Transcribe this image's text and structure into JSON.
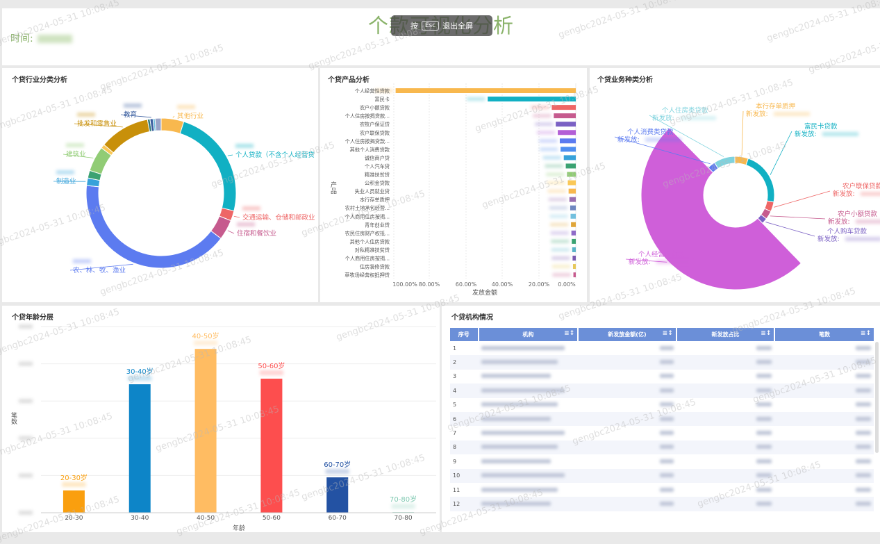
{
  "header": {
    "title": "个款可视化分析",
    "time_label": "时间:",
    "esc_prefix": "按",
    "esc_key": "Esc",
    "esc_suffix": "退出全屏"
  },
  "watermark": "gengbc2024-05-31 10:08:45",
  "panels": {
    "industry": "个贷行业分类分析",
    "product": "个贷产品分析",
    "business": "个贷业务种类分析",
    "age": "个贷年龄分层",
    "institution": "个贷机构情况"
  },
  "chart_data": [
    {
      "type": "pie",
      "variant": "donut",
      "title": "个贷行业分类分析",
      "slices": [
        {
          "label": "其他行业",
          "value": 4.5,
          "color": "#f8b84e"
        },
        {
          "label": "个人贷款（不含个人经营贷",
          "value": 22,
          "color": "#11b0c3"
        },
        {
          "label": "交通运输、仓储和邮政业",
          "value": 2,
          "color": "#ee6666"
        },
        {
          "label": "住宿和餐饮业",
          "value": 4,
          "color": "#c65b8e"
        },
        {
          "label": "农、林、牧、渔业",
          "value": 38,
          "color": "#5c7bf0"
        },
        {
          "label": "制造业",
          "value": 1.5,
          "color": "#37a2da"
        },
        {
          "label": "",
          "value": 1.5,
          "color": "#3ba272"
        },
        {
          "label": "建筑业",
          "value": 5,
          "color": "#91cc75"
        },
        {
          "label": "",
          "value": 0.8,
          "color": "#fac858"
        },
        {
          "label": "批发和零售业",
          "value": 10,
          "color": "#c8900a"
        },
        {
          "label": "",
          "value": 0.5,
          "color": "#30797a"
        },
        {
          "label": "教育",
          "value": 0.6,
          "color": "#3b5fa0"
        },
        {
          "label": "",
          "value": 0.4,
          "color": "#73c0de"
        },
        {
          "label": "",
          "value": 1.2,
          "color": "#9aa4c8"
        }
      ]
    },
    {
      "type": "bar",
      "orientation": "horizontal",
      "title": "个贷产品分析",
      "xlabel": "发放金额",
      "ylabel": "产品",
      "xticks": [
        "100.00%",
        "80.00%",
        "60.00%",
        "40.00%",
        "20.00%",
        "0.00%"
      ],
      "categories": [
        "个人经营性贷款",
        "富民卡",
        "农户小额贷款",
        "个人住房按揭贷款...",
        "农牧户保证贷",
        "农户联保贷款",
        "个人住房按揭贷款...",
        "其他个人消费贷款",
        "诚信商户贷",
        "个人汽车贷",
        "精准扶贫贷",
        "公积金贷款",
        "失业人员就业贷",
        "本行存单质押",
        "农村土地承包经营...",
        "个人商用住房按揭...",
        "青年创业贷",
        "农民住房财产权抵...",
        "其他个人住房贷款",
        "对私精准扶贫贷",
        "个人商用住房按揭...",
        "住房装修贷款",
        "草牧场经营权抵押贷"
      ],
      "values": [
        45,
        22,
        6,
        5.5,
        5,
        4.5,
        4,
        3.8,
        3,
        2.5,
        2.2,
        2,
        1.8,
        1.6,
        1.4,
        1.3,
        1.2,
        1.1,
        1,
        0.9,
        0.8,
        0.7,
        0.6
      ],
      "colors": [
        "#f8b84e",
        "#11b0c3",
        "#ee6666",
        "#c65b8e",
        "#7b61c4",
        "#b35fd6",
        "#5c7bf0",
        "#4f8ef0",
        "#37a2da",
        "#3ba272",
        "#91cc75",
        "#fac858",
        "#f8b84e",
        "#9a6fb0",
        "#6f87c0",
        "#73c0de",
        "#e0a63a",
        "#8f6bc8",
        "#3ba272",
        "#5ab4c8",
        "#7a5ab0",
        "#e6c85a",
        "#c65b8e"
      ]
    },
    {
      "type": "pie",
      "variant": "rose",
      "title": "个贷业务种类分析",
      "slices": [
        {
          "label": "本行存单质押",
          "sublabel": "新发放:",
          "value": 0.4,
          "color": "#f8b84e"
        },
        {
          "label": "富民卡贷款",
          "sublabel": "新发放:",
          "value": 10,
          "color": "#11b0c3"
        },
        {
          "label": "农户联保贷款",
          "sublabel": "新发放:",
          "value": 1.2,
          "color": "#ee6666"
        },
        {
          "label": "农户小额贷款",
          "sublabel": "新发放:",
          "value": 1.8,
          "color": "#c65b8e"
        },
        {
          "label": "个人购车贷款",
          "sublabel": "新发放:",
          "value": 0.3,
          "color": "#7b61c4"
        },
        {
          "label": "个人经营性贷款",
          "sublabel": "新发放:",
          "value": 70,
          "color": "#cf5fd9"
        },
        {
          "label": "个人消费类贷款",
          "sublabel": "新发放:",
          "value": 1.2,
          "color": "#5c7bf0"
        },
        {
          "label": "个人住房类贷款",
          "sublabel": "新发放:",
          "value": 6,
          "color": "#7fd3de"
        }
      ]
    },
    {
      "type": "bar",
      "title": "个贷年龄分层",
      "xlabel": "年龄",
      "ylabel": "笔数",
      "categories": [
        "20-30",
        "30-40",
        "40-50",
        "50-60",
        "60-70",
        "70-80"
      ],
      "value_labels": [
        "20-30岁",
        "30-40岁",
        "40-50岁",
        "50-60岁",
        "60-70岁",
        "70-80岁"
      ],
      "values": [
        12,
        69,
        88,
        72,
        19,
        0.3
      ],
      "colors": [
        "#fa9f0e",
        "#0d85c8",
        "#ffbc62",
        "#fd4e4e",
        "#2352a3",
        "#7ec8b0"
      ],
      "ylim": [
        0,
        100
      ]
    }
  ],
  "table": {
    "columns": [
      "序号",
      "机构",
      "新发放金额(亿)",
      "新发放占比",
      "笔数"
    ],
    "rows": [
      "1",
      "2",
      "3",
      "4",
      "5",
      "6",
      "7",
      "8",
      "9",
      "10",
      "11",
      "12"
    ]
  }
}
